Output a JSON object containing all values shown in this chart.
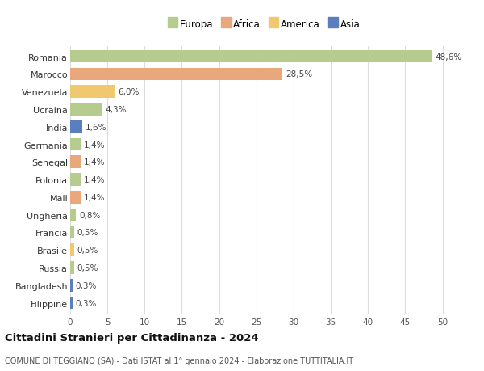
{
  "countries": [
    "Romania",
    "Marocco",
    "Venezuela",
    "Ucraina",
    "India",
    "Germania",
    "Senegal",
    "Polonia",
    "Mali",
    "Ungheria",
    "Francia",
    "Brasile",
    "Russia",
    "Bangladesh",
    "Filippine"
  ],
  "values": [
    48.6,
    28.5,
    6.0,
    4.3,
    1.6,
    1.4,
    1.4,
    1.4,
    1.4,
    0.8,
    0.5,
    0.5,
    0.5,
    0.3,
    0.3
  ],
  "labels": [
    "48,6%",
    "28,5%",
    "6,0%",
    "4,3%",
    "1,6%",
    "1,4%",
    "1,4%",
    "1,4%",
    "1,4%",
    "0,8%",
    "0,5%",
    "0,5%",
    "0,5%",
    "0,3%",
    "0,3%"
  ],
  "colors": [
    "#b5cc8e",
    "#e8a87c",
    "#f0c96e",
    "#b5cc8e",
    "#5b7fbe",
    "#b5cc8e",
    "#e8a87c",
    "#b5cc8e",
    "#e8a87c",
    "#b5cc8e",
    "#b5cc8e",
    "#f0c96e",
    "#b5cc8e",
    "#5b7fbe",
    "#5b7fbe"
  ],
  "legend_labels": [
    "Europa",
    "Africa",
    "America",
    "Asia"
  ],
  "legend_colors": [
    "#b5cc8e",
    "#e8a87c",
    "#f0c96e",
    "#5b7fbe"
  ],
  "title": "Cittadini Stranieri per Cittadinanza - 2024",
  "subtitle": "COMUNE DI TEGGIANO (SA) - Dati ISTAT al 1° gennaio 2024 - Elaborazione TUTTITALIA.IT",
  "xlim": [
    0,
    52
  ],
  "xticks": [
    0,
    5,
    10,
    15,
    20,
    25,
    30,
    35,
    40,
    45,
    50
  ],
  "background_color": "#ffffff",
  "grid_color": "#dddddd",
  "bar_height": 0.72,
  "figsize": [
    6.0,
    4.6
  ],
  "dpi": 100
}
